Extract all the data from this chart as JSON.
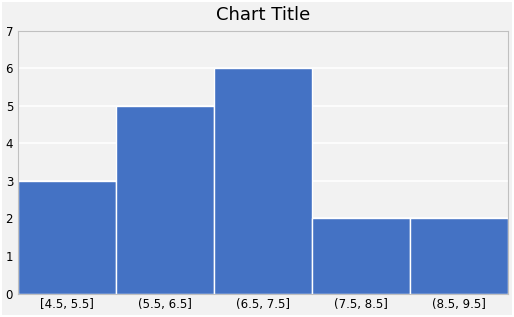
{
  "title": "Chart Title",
  "categories": [
    "[4.5, 5.5]",
    "(5.5, 6.5]",
    "(6.5, 7.5]",
    "(7.5, 8.5]",
    "(8.5, 9.5]"
  ],
  "values": [
    3,
    5,
    6,
    2,
    2
  ],
  "bar_color": "#4472C4",
  "bar_edge_color": "#ffffff",
  "bar_edge_width": 1.0,
  "ylim": [
    0,
    7
  ],
  "yticks": [
    0,
    1,
    2,
    3,
    4,
    5,
    6,
    7
  ],
  "title_fontsize": 13,
  "tick_fontsize": 8.5,
  "background_color": "#f2f2f2",
  "plot_bg_color": "#f2f2f2",
  "grid_color": "#ffffff",
  "outer_border_color": "#c0c0c0"
}
